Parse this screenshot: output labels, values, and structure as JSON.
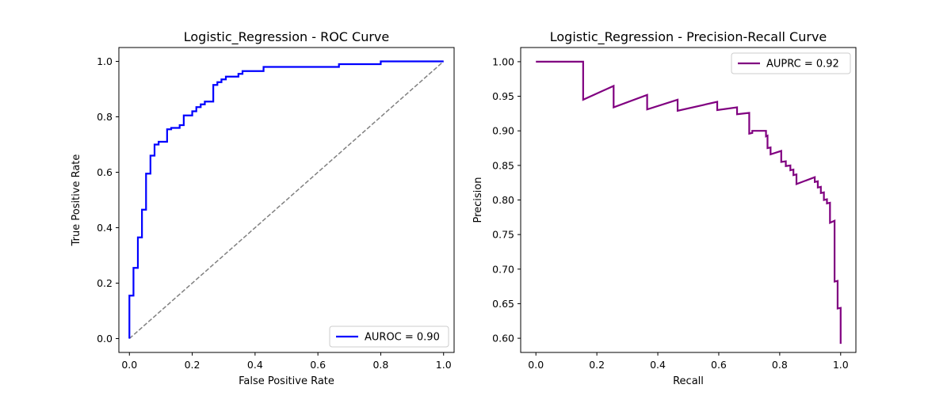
{
  "chart_data": [
    {
      "type": "line",
      "title": "Logistic_Regression - ROC Curve",
      "xlabel": "False Positive Rate",
      "ylabel": "True Positive Rate",
      "xlim": [
        -0.0335,
        1.0335
      ],
      "ylim": [
        -0.05,
        1.05
      ],
      "xticks": [
        0.0,
        0.2,
        0.4,
        0.6,
        0.8,
        1.0
      ],
      "yticks": [
        0.0,
        0.2,
        0.4,
        0.6,
        0.8,
        1.0
      ],
      "xtick_labels": [
        "0.0",
        "0.2",
        "0.4",
        "0.6",
        "0.8",
        "1.0"
      ],
      "ytick_labels": [
        "0.0",
        "0.2",
        "0.4",
        "0.6",
        "0.8",
        "1.0"
      ],
      "grid": false,
      "legend_position": "lower-right",
      "series": [
        {
          "name": "AUROC = 0.90",
          "color": "#0000ff",
          "style": "solid",
          "step": true,
          "x": [
            0.0,
            0.0,
            0.013,
            0.013,
            0.027,
            0.027,
            0.04,
            0.04,
            0.053,
            0.053,
            0.067,
            0.067,
            0.08,
            0.08,
            0.093,
            0.093,
            0.12,
            0.12,
            0.133,
            0.133,
            0.16,
            0.16,
            0.173,
            0.173,
            0.2,
            0.2,
            0.213,
            0.213,
            0.227,
            0.227,
            0.24,
            0.24,
            0.267,
            0.267,
            0.28,
            0.28,
            0.293,
            0.293,
            0.307,
            0.307,
            0.347,
            0.347,
            0.36,
            0.36,
            0.427,
            0.427,
            0.667,
            0.667,
            0.8,
            0.8,
            1.0
          ],
          "y": [
            0.0,
            0.155,
            0.155,
            0.255,
            0.255,
            0.365,
            0.365,
            0.465,
            0.465,
            0.595,
            0.595,
            0.66,
            0.66,
            0.7,
            0.7,
            0.71,
            0.71,
            0.755,
            0.755,
            0.76,
            0.76,
            0.77,
            0.77,
            0.805,
            0.805,
            0.82,
            0.82,
            0.835,
            0.835,
            0.845,
            0.845,
            0.855,
            0.855,
            0.915,
            0.915,
            0.925,
            0.925,
            0.935,
            0.935,
            0.945,
            0.945,
            0.955,
            0.955,
            0.965,
            0.965,
            0.98,
            0.98,
            0.99,
            0.99,
            1.0,
            1.0
          ]
        },
        {
          "name": "",
          "color": "#808080",
          "style": "dashed",
          "x": [
            0.0,
            1.0
          ],
          "y": [
            0.0,
            1.0
          ]
        }
      ]
    },
    {
      "type": "line",
      "title": "Logistic_Regression - Precision-Recall Curve",
      "xlabel": "Recall",
      "ylabel": "Precision",
      "xlim": [
        -0.05,
        1.05
      ],
      "ylim": [
        0.5795,
        1.0205
      ],
      "xticks": [
        0.0,
        0.2,
        0.4,
        0.6,
        0.8,
        1.0
      ],
      "yticks": [
        0.6,
        0.65,
        0.7,
        0.75,
        0.8,
        0.85,
        0.9,
        0.95,
        1.0
      ],
      "xtick_labels": [
        "0.0",
        "0.2",
        "0.4",
        "0.6",
        "0.8",
        "1.0"
      ],
      "ytick_labels": [
        "0.60",
        "0.65",
        "0.70",
        "0.75",
        "0.80",
        "0.85",
        "0.90",
        "0.95",
        "1.00"
      ],
      "grid": false,
      "legend_position": "upper-right",
      "series": [
        {
          "name": "AUPRC = 0.92",
          "color": "#800080",
          "style": "solid",
          "x": [
            0.0,
            0.155,
            0.155,
            0.255,
            0.255,
            0.365,
            0.365,
            0.465,
            0.465,
            0.595,
            0.595,
            0.66,
            0.66,
            0.7,
            0.7,
            0.71,
            0.71,
            0.755,
            0.755,
            0.76,
            0.76,
            0.77,
            0.77,
            0.805,
            0.805,
            0.82,
            0.82,
            0.835,
            0.835,
            0.845,
            0.845,
            0.855,
            0.855,
            0.915,
            0.915,
            0.925,
            0.925,
            0.935,
            0.935,
            0.945,
            0.945,
            0.955,
            0.955,
            0.965,
            0.965,
            0.98,
            0.98,
            0.99,
            0.99,
            1.0,
            1.0
          ],
          "y": [
            1.0,
            1.0,
            0.945,
            0.965,
            0.934,
            0.952,
            0.931,
            0.945,
            0.929,
            0.942,
            0.93,
            0.934,
            0.924,
            0.926,
            0.896,
            0.897,
            0.9,
            0.9,
            0.892,
            0.893,
            0.875,
            0.876,
            0.866,
            0.871,
            0.855,
            0.856,
            0.849,
            0.85,
            0.843,
            0.844,
            0.836,
            0.837,
            0.823,
            0.833,
            0.826,
            0.827,
            0.818,
            0.819,
            0.81,
            0.811,
            0.8,
            0.801,
            0.795,
            0.796,
            0.767,
            0.77,
            0.682,
            0.683,
            0.643,
            0.644,
            0.592
          ]
        }
      ]
    }
  ]
}
